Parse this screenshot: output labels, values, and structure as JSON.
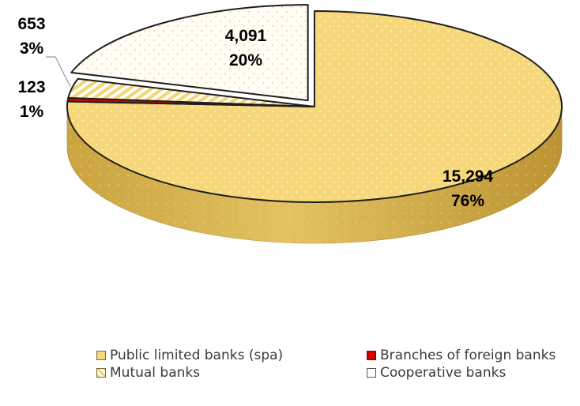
{
  "colors": {
    "public": "#f6d77a",
    "public_side": "#d3ae4a",
    "foreign": "#d40000",
    "foreign_side": "#8a0000",
    "mutual": "#f7e2a0",
    "cooperative": "#fffdf5",
    "outline": "#1e1e1e"
  },
  "chart_data": {
    "type": "pie",
    "title": "",
    "slices": [
      {
        "label": "Public limited banks (spa)",
        "value": 15294,
        "value_label": "15,294",
        "percent_label": "76%",
        "color": "#f6d77a",
        "pattern": "dots"
      },
      {
        "label": "Branches of foreign banks",
        "value": 123,
        "value_label": "123",
        "percent_label": "1%",
        "color": "#d40000",
        "pattern": "solid"
      },
      {
        "label": "Mutual banks",
        "value": 653,
        "value_label": "653",
        "percent_label": "3%",
        "color": "#f7e2a0",
        "pattern": "diagonal-stripes"
      },
      {
        "label": "Cooperative banks",
        "value": 4091,
        "value_label": "4,091",
        "percent_label": "20%",
        "color": "#fffdf5",
        "pattern": "dots",
        "exploded": true
      }
    ],
    "legend": {
      "placement": "bottom",
      "items": [
        {
          "label": "Public limited banks (spa)",
          "icon": "yellow-dotted-square"
        },
        {
          "label": "Branches of foreign banks",
          "icon": "red-square"
        },
        {
          "label": "Mutual banks",
          "icon": "striped-square"
        },
        {
          "label": "Cooperative banks",
          "icon": "white-square"
        }
      ]
    }
  }
}
